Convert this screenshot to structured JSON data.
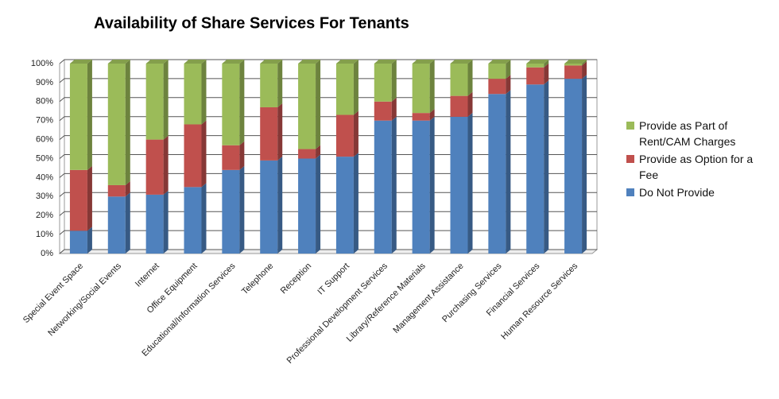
{
  "chart_data": {
    "type": "stacked_bar",
    "title": "Availability of Share Services For Tenants",
    "categories": [
      "Special Event Space",
      "Networking/Social Events",
      "Internet",
      "Office Equipment",
      "Educational/Information Services",
      "Telephone",
      "Reception",
      "IT Support",
      "Professional Development Services",
      "Library/Reference Materials",
      "Management Assistance",
      "Purchasing Services",
      "Financial Services",
      "Human Resource Services"
    ],
    "series": [
      {
        "name": "Do Not Provide",
        "color": "#4f81bd",
        "values": [
          12,
          30,
          31,
          35,
          44,
          49,
          50,
          51,
          70,
          70,
          72,
          84,
          89,
          92
        ]
      },
      {
        "name": "Provide as Option for a Fee",
        "color": "#c0504d",
        "values": [
          32,
          6,
          29,
          33,
          13,
          28,
          5,
          22,
          10,
          4,
          11,
          8,
          9,
          7
        ]
      },
      {
        "name": "Provide as Part of Rent/CAM Charges",
        "color": "#9bbb59",
        "values": [
          56,
          64,
          40,
          32,
          43,
          23,
          45,
          27,
          20,
          26,
          17,
          8,
          2,
          1
        ]
      }
    ],
    "ylim": [
      0,
      100
    ],
    "yticks": [
      {
        "value": 0,
        "label": "0%"
      },
      {
        "value": 10,
        "label": "10%"
      },
      {
        "value": 20,
        "label": "20%"
      },
      {
        "value": 30,
        "label": "30%"
      },
      {
        "value": 40,
        "label": "40%"
      },
      {
        "value": 50,
        "label": "50%"
      },
      {
        "value": 60,
        "label": "60%"
      },
      {
        "value": 70,
        "label": "70%"
      },
      {
        "value": 80,
        "label": "80%"
      },
      {
        "value": 90,
        "label": "90%"
      },
      {
        "value": 100,
        "label": "100%"
      }
    ],
    "grid": true,
    "legend": "right"
  }
}
